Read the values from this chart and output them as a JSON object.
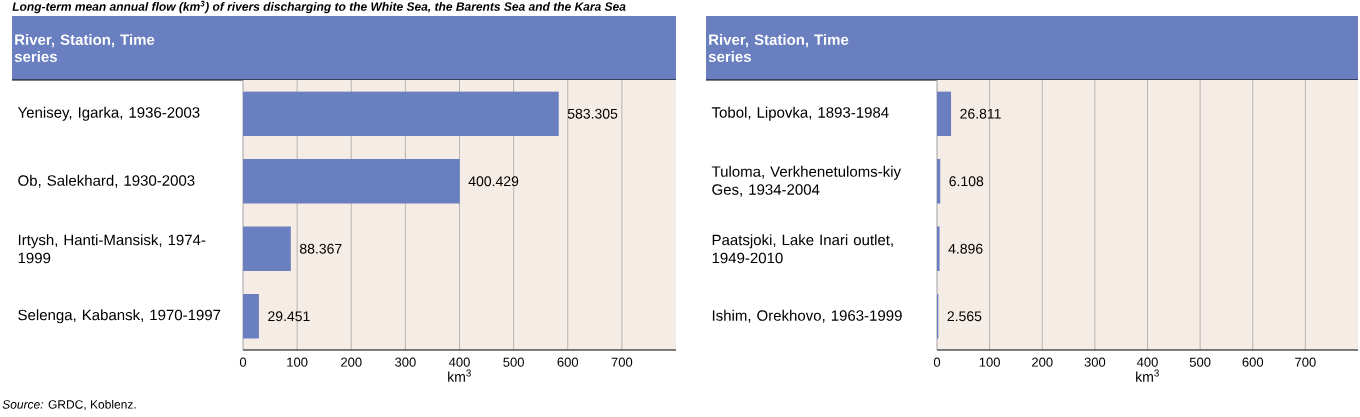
{
  "chart_data": [
    {
      "type": "bar",
      "orientation": "horizontal",
      "title": "Long-term mean annual flow (km$^{3}$) of rivers discharging to the White Sea, the Barents Sea and the Kara Sea",
      "ylabel": "River, Station, Time series",
      "xlabel": "km$^{3}$",
      "categories": [
        "Yenisey, Igarka, 1936-2003",
        "Ob, Salekhard, 1930-2003",
        "Irtysh, Hanti-Mansisk, 1974-1999",
        "Selenga, Kabansk, 1970-1997"
      ],
      "values": [
        583.305,
        400.429,
        88.367,
        29.451
      ],
      "color": "#6a7fc0",
      "data_labels": true,
      "xlim": [
        0,
        800
      ],
      "xticks": [
        0,
        100,
        200,
        300,
        400,
        500,
        600,
        700
      ],
      "grid": "x",
      "annotations": [
        "*Source:* GRDC, Koblenz."
      ]
    },
    {
      "type": "bar",
      "orientation": "horizontal",
      "ylabel": "River, Station, Time series",
      "xlabel": "km$^{3}$",
      "categories": [
        "Tobol, Lipovka, 1893-1984",
        "Tuloma, Verkhenetuloms-kiy Ges, 1934-2004",
        "Paatsjoki, Lake Inari outlet, 1949-2010",
        "Ishim, Orekhovo, 1963-1999"
      ],
      "values": [
        26.811,
        6.108,
        4.896,
        2.565
      ],
      "color": "#6a7fc0",
      "data_labels": true,
      "xlim": [
        0,
        800
      ],
      "xticks": [
        0,
        100,
        200,
        300,
        400,
        500,
        600,
        700
      ],
      "grid": "x"
    }
  ]
}
